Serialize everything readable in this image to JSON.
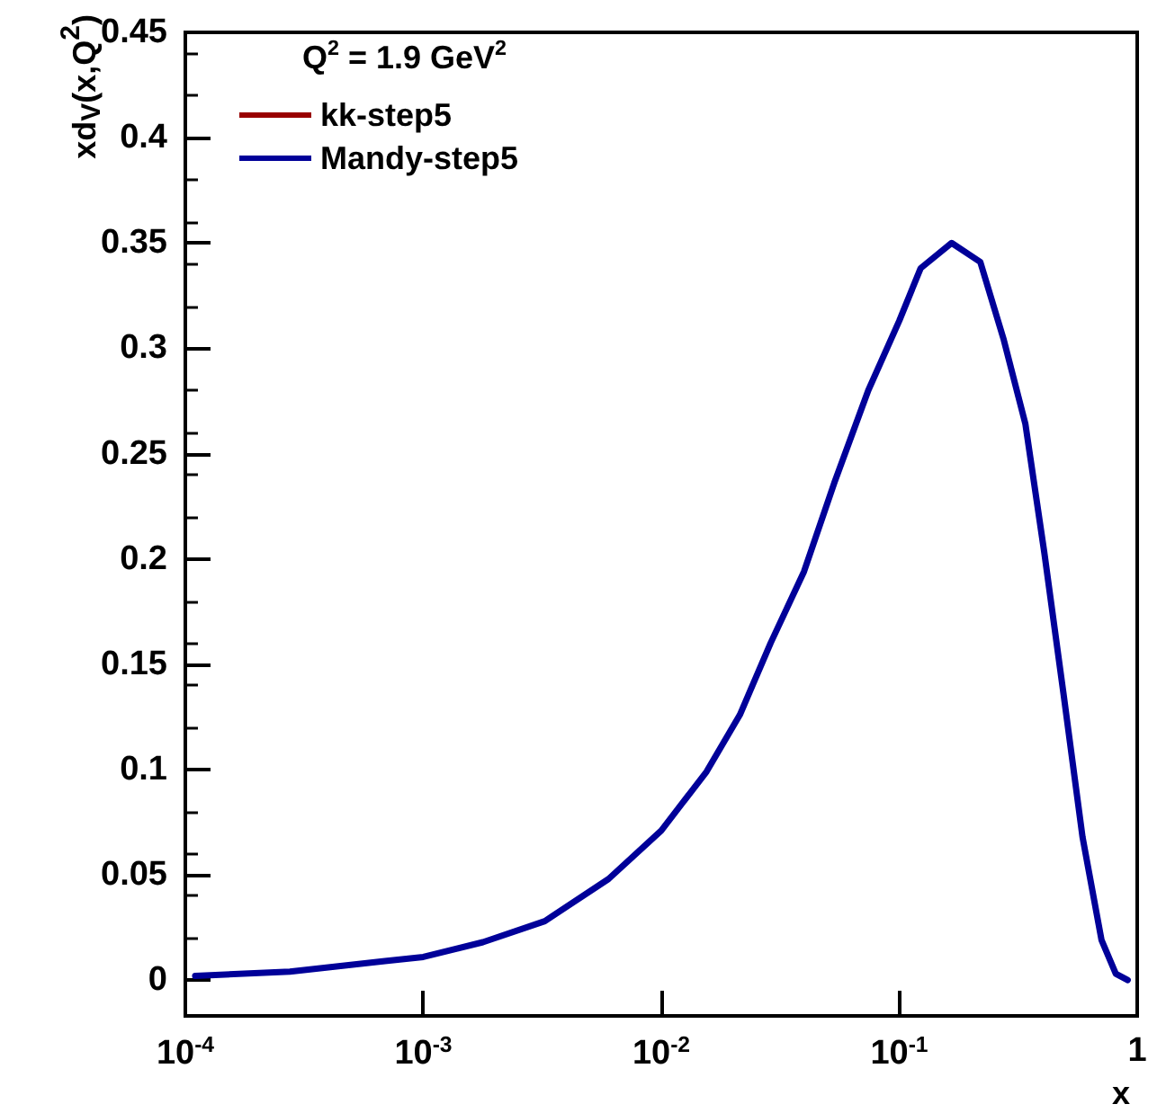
{
  "chart_data": {
    "type": "line",
    "xlabel": "x",
    "ylabel": "xd$_{V}$(x,Q$^{2}$)",
    "legend_title": "Q$^{2}$ = 1.9 GeV$^{2}$",
    "x": [
      0.00011,
      0.000275,
      0.00069,
      0.001,
      0.00178,
      0.00324,
      0.006,
      0.01,
      0.0155,
      0.0214,
      0.0288,
      0.0398,
      0.0537,
      0.0741,
      0.1,
      0.123,
      0.166,
      0.219,
      0.275,
      0.339,
      0.407,
      0.49,
      0.589,
      0.708,
      0.813,
      0.912
    ],
    "series": [
      {
        "name": "kk-step5",
        "color": "#990000",
        "values": [
          null,
          null,
          null,
          null,
          null,
          null,
          null,
          null,
          null,
          null,
          null,
          null,
          null,
          null,
          null,
          null,
          null,
          null,
          null,
          null,
          null,
          null,
          null,
          null,
          null,
          null
        ]
      },
      {
        "name": "Mandy-step5",
        "color": "#000099",
        "values": [
          0.002,
          0.004,
          0.009,
          0.011,
          0.018,
          0.028,
          0.048,
          0.071,
          0.099,
          0.126,
          0.16,
          0.194,
          0.237,
          0.28,
          0.313,
          0.338,
          0.35,
          0.341,
          0.304,
          0.264,
          0.203,
          0.136,
          0.068,
          0.019,
          0.003,
          0.0
        ]
      }
    ],
    "log": "x",
    "xlim": [
      0.0001,
      1
    ],
    "xticks": [
      {
        "value": 0.0001,
        "label": "10$^{-4}$"
      },
      {
        "value": 0.001,
        "label": "10$^{-3}$"
      },
      {
        "value": 0.01,
        "label": "10$^{-2}$"
      },
      {
        "value": 0.1,
        "label": "10$^{-1}$"
      },
      1
    ],
    "ylim": [
      -0.017,
      0.45
    ],
    "yticks": [
      0,
      0.05,
      0.1,
      0.15,
      0.2,
      0.25,
      0.3,
      0.35,
      0.4,
      0.45
    ],
    "grid": false,
    "legend": "top left",
    "marker": "none",
    "line_style": "solid"
  }
}
